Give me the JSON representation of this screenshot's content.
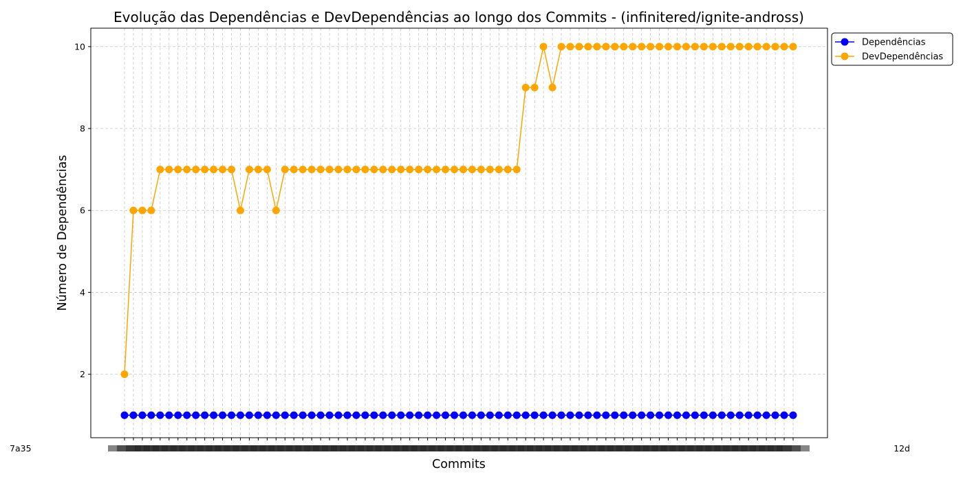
{
  "chart_data": {
    "type": "line",
    "title": "Evolução das Dependências e DevDependências ao longo dos Commits - (infinitered/ignite-andross)",
    "xlabel": "Commits",
    "ylabel": "Número de Dependências",
    "x_tick_labels_rendering": "overlapping commit hashes, illegible except the first ('7a3') and last ('12d')",
    "x_first_tick_fragment": "7a35",
    "x_last_tick_fragment": "12d",
    "ylim": [
      0.45,
      10.45
    ],
    "yticks": [
      2,
      4,
      6,
      8,
      10
    ],
    "grid": true,
    "legend_position": "upper-left outside plot, right of axes",
    "series": [
      {
        "name": "Dependências",
        "color": "#0000ff",
        "values": [
          1,
          1,
          1,
          1,
          1,
          1,
          1,
          1,
          1,
          1,
          1,
          1,
          1,
          1,
          1,
          1,
          1,
          1,
          1,
          1,
          1,
          1,
          1,
          1,
          1,
          1,
          1,
          1,
          1,
          1,
          1,
          1,
          1,
          1,
          1,
          1,
          1,
          1,
          1,
          1,
          1,
          1,
          1,
          1,
          1,
          1,
          1,
          1,
          1,
          1,
          1,
          1,
          1,
          1,
          1,
          1,
          1,
          1,
          1,
          1,
          1,
          1,
          1,
          1,
          1,
          1,
          1,
          1,
          1,
          1,
          1,
          1,
          1,
          1,
          1,
          1
        ]
      },
      {
        "name": "DevDependências",
        "color": "#ffa500",
        "values": [
          2,
          6,
          6,
          6,
          7,
          7,
          7,
          7,
          7,
          7,
          7,
          7,
          7,
          6,
          7,
          7,
          7,
          6,
          7,
          7,
          7,
          7,
          7,
          7,
          7,
          7,
          7,
          7,
          7,
          7,
          7,
          7,
          7,
          7,
          7,
          7,
          7,
          7,
          7,
          7,
          7,
          7,
          7,
          7,
          7,
          9,
          9,
          10,
          9,
          10,
          10,
          10,
          10,
          10,
          10,
          10,
          10,
          10,
          10,
          10,
          10,
          10,
          10,
          10,
          10,
          10,
          10,
          10,
          10,
          10,
          10,
          10,
          10,
          10,
          10,
          10
        ]
      }
    ]
  }
}
